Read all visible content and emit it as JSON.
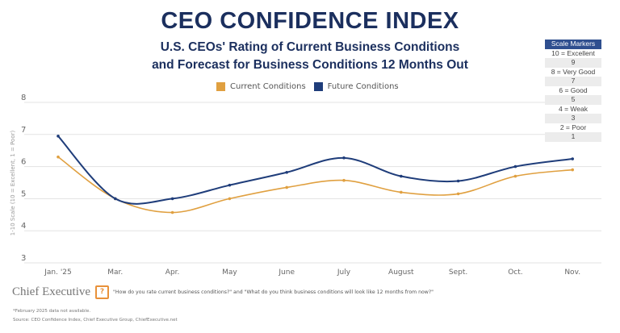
{
  "title": "CEO CONFIDENCE INDEX",
  "subtitle_line1": "U.S. CEOs' Rating of Current Business Conditions",
  "subtitle_line2": "and Forecast for Business Conditions 12 Months Out",
  "scale_markers": {
    "header": "Scale Markers",
    "items": [
      "10 = Excellent",
      "9",
      "8 = Very Good",
      "7",
      "6 = Good",
      "5",
      "4 = Weak",
      "3",
      "2 = Poor",
      "1"
    ]
  },
  "footer": {
    "logo": "Chief Executive",
    "question_icon": "question-box-icon",
    "question": "\"How do you rate current business conditions?\" and \"What do you think business conditions will look like 12 months from now?\"",
    "note": "*February 2025 data not available.",
    "source": "Source: CEO Confidence Index, Chief Executive Group, ChiefExecutive.net"
  },
  "chart_data": {
    "type": "line",
    "ylabel": "1-10 Scale (10 = Excellent, 1 = Poor)",
    "ylim": [
      3,
      8
    ],
    "yticks": [
      3,
      4,
      5,
      6,
      7,
      8
    ],
    "grid": true,
    "legend_position": "top-center",
    "categories": [
      "Jan. '25",
      "Mar.",
      "Apr.",
      "May",
      "June",
      "July",
      "August",
      "Sept.",
      "Oct.",
      "Nov."
    ],
    "series": [
      {
        "name": "Current Conditions",
        "color": "#e0a040",
        "values": [
          6.3,
          5.0,
          4.57,
          5.0,
          5.35,
          5.57,
          5.2,
          5.15,
          5.7,
          5.9
        ]
      },
      {
        "name": "Future Conditions",
        "color": "#1f3d7a",
        "values": [
          6.95,
          5.0,
          5.0,
          5.42,
          5.82,
          6.27,
          5.7,
          5.55,
          6.0,
          6.24
        ]
      }
    ]
  }
}
